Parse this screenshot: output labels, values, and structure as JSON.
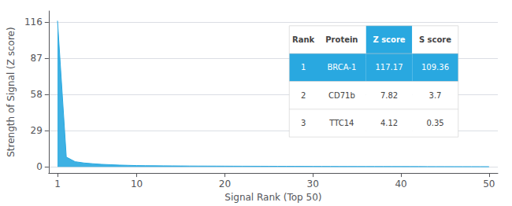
{
  "chart_data": {
    "type": "area",
    "x": [
      1,
      2,
      3,
      4,
      5,
      6,
      7,
      8,
      9,
      10,
      11,
      12,
      13,
      14,
      15,
      16,
      17,
      18,
      19,
      20,
      21,
      22,
      23,
      24,
      25,
      26,
      27,
      28,
      29,
      30,
      31,
      32,
      33,
      34,
      35,
      36,
      37,
      38,
      39,
      40,
      41,
      42,
      43,
      44,
      45,
      46,
      47,
      48,
      49,
      50
    ],
    "values": [
      117.17,
      7.82,
      4.12,
      3.1,
      2.5,
      2.0,
      1.7,
      1.4,
      1.2,
      1.0,
      0.9,
      0.85,
      0.8,
      0.75,
      0.7,
      0.65,
      0.62,
      0.6,
      0.58,
      0.55,
      0.52,
      0.5,
      0.48,
      0.46,
      0.44,
      0.42,
      0.4,
      0.38,
      0.36,
      0.34,
      0.32,
      0.3,
      0.28,
      0.27,
      0.26,
      0.25,
      0.24,
      0.23,
      0.22,
      0.21,
      0.2,
      0.19,
      0.18,
      0.17,
      0.16,
      0.15,
      0.14,
      0.13,
      0.12,
      0.11
    ],
    "color": "#29a8e0",
    "xlabel": "Signal Rank (Top 50)",
    "ylabel": "Strength of Signal (Z score)",
    "xlim": [
      0,
      51
    ],
    "ylim": [
      -5,
      125
    ],
    "xticks": [
      1,
      10,
      20,
      30,
      40,
      50
    ],
    "yticks": [
      0,
      29,
      58,
      87,
      116
    ],
    "grid": true,
    "table": [
      [
        "Rank",
        "Protein",
        "Z score",
        "S score"
      ],
      [
        "1",
        "BRCA-1",
        "117.17",
        "109.36"
      ],
      [
        "2",
        "CD71b",
        "7.82",
        "3.7"
      ],
      [
        "3",
        "TTC14",
        "4.12",
        "0.35"
      ]
    ]
  }
}
